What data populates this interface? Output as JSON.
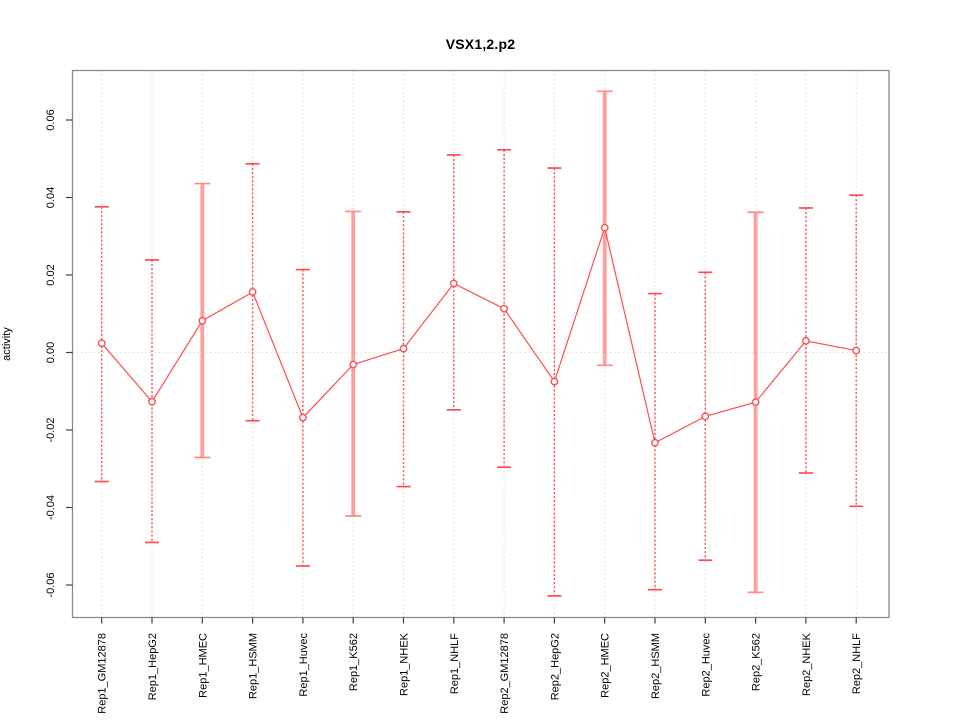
{
  "title": "VSX1,2.p2",
  "axes": {
    "ylabel": "activity",
    "ytick_labels": [
      "0.06",
      "0.04",
      "0.02",
      "0.00",
      "-0.02",
      "-0.04",
      "-0.06"
    ]
  },
  "chart_data": {
    "type": "line",
    "title": "VSX1,2.p2",
    "xlabel": "",
    "ylabel": "activity",
    "legend_position": "none",
    "grid": "vertical dotted line per category plus dotted horizontal zero line",
    "marker": "open-circle with vertical error bars capped at both ends",
    "categories": [
      "Rep1_GM12878",
      "Rep1_HepG2",
      "Rep1_HMEC",
      "Rep1_HSMM",
      "Rep1_Huvec",
      "Rep1_K562",
      "Rep1_NHEK",
      "Rep1_NHLF",
      "Rep2_GM12878",
      "Rep2_HepG2",
      "Rep2_HMEC",
      "Rep2_HSMM",
      "Rep2_Huvec",
      "Rep2_K562",
      "Rep2_NHEK",
      "Rep2_NHLF"
    ],
    "series": [
      {
        "name": "activity",
        "values": [
          0.0024,
          -0.0127,
          0.0082,
          0.0156,
          -0.0168,
          -0.0031,
          0.001,
          0.0178,
          0.0113,
          -0.0075,
          0.0322,
          -0.0233,
          -0.0165,
          -0.0128,
          0.003,
          0.0005
        ],
        "upper": [
          0.0376,
          0.0239,
          0.0436,
          0.0487,
          0.0214,
          0.0364,
          0.0363,
          0.051,
          0.0523,
          0.0476,
          0.0674,
          0.0152,
          0.0207,
          0.0362,
          0.0373,
          0.0406
        ],
        "lower": [
          -0.0333,
          -0.049,
          -0.0271,
          -0.0176,
          -0.0551,
          -0.0422,
          -0.0346,
          -0.0148,
          -0.0296,
          -0.0628,
          -0.0033,
          -0.0612,
          -0.0536,
          -0.0619,
          -0.0311,
          -0.0397
        ]
      }
    ],
    "emphasized_categories": [
      "Rep1_HMEC",
      "Rep1_K562",
      "Rep2_HMEC",
      "Rep2_K562"
    ],
    "ylim": [
      -0.068,
      0.073
    ],
    "yticks": [
      0.06,
      0.04,
      0.02,
      0.0,
      -0.02,
      -0.04,
      -0.06
    ],
    "colors": {
      "point": "#ff4d4d",
      "line": "#ff4d4d",
      "error_bar": "#ff4d4d",
      "error_bar_emphasized": "#ff9e9e",
      "error_bar_cap_emphasized": "#ff8a8a",
      "grid": "#d9d9d9",
      "zero_line": "#dedede",
      "frame": "#8a8a8a",
      "tick": "#404040",
      "text": "#000000",
      "background": "#ffffff"
    }
  }
}
